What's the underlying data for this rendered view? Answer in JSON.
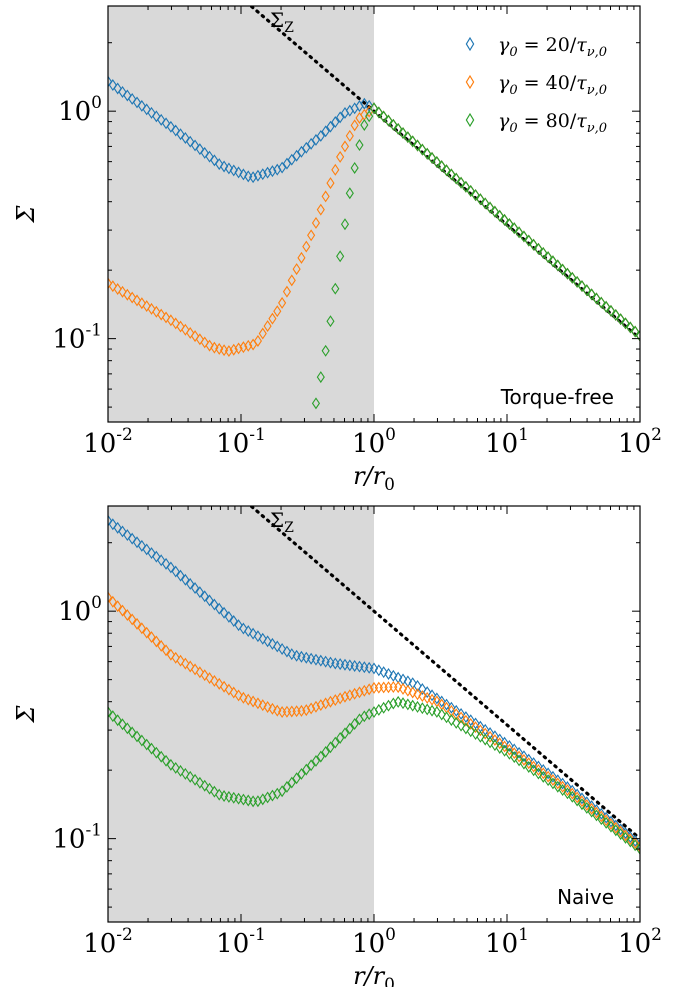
{
  "colors": {
    "blue": "#1f77b4",
    "orange": "#ff7f0e",
    "green": "#2ca02c",
    "shade": "#d9d9d9"
  },
  "chart_data": [
    {
      "type": "scatter",
      "panel_label": "Torque-free",
      "xlabel": "r/r₀",
      "ylabel": "Σ",
      "xscale": "log",
      "yscale": "log",
      "xlim": [
        0.01,
        100
      ],
      "ylim": [
        0.043,
        2.9
      ],
      "x_ticks": [
        "10-2",
        "10-1",
        "100",
        "101",
        "102"
      ],
      "y_ticks": [
        "10-1",
        "100"
      ],
      "shaded_region": [
        0.01,
        1
      ],
      "reference_line": {
        "label": "ΣZ",
        "points": [
          [
            0.01,
            10
          ],
          [
            100,
            0.1
          ]
        ]
      },
      "legend": {
        "position": "top-right"
      },
      "series": [
        {
          "name": "γ0 = 20/τν,0",
          "color_key": "blue",
          "curve": [
            [
              0.01,
              1.35
            ],
            [
              0.03,
              0.85
            ],
            [
              0.07,
              0.58
            ],
            [
              0.12,
              0.51
            ],
            [
              0.2,
              0.56
            ],
            [
              0.4,
              0.78
            ],
            [
              0.6,
              0.98
            ],
            [
              0.85,
              1.08
            ],
            [
              1.0,
              1.03
            ],
            [
              100,
              0.103
            ]
          ]
        },
        {
          "name": "γ0 = 40/τν,0",
          "color_key": "orange",
          "curve": [
            [
              0.01,
              0.175
            ],
            [
              0.03,
              0.12
            ],
            [
              0.06,
              0.092
            ],
            [
              0.08,
              0.088
            ],
            [
              0.13,
              0.095
            ],
            [
              0.2,
              0.14
            ],
            [
              0.35,
              0.3
            ],
            [
              0.55,
              0.62
            ],
            [
              0.75,
              0.92
            ],
            [
              1.0,
              1.03
            ],
            [
              100,
              0.103
            ]
          ]
        },
        {
          "name": "γ0 = 80/τν,0",
          "color_key": "green",
          "curve": [
            [
              0.35,
              0.045
            ],
            [
              0.45,
              0.1
            ],
            [
              0.55,
              0.22
            ],
            [
              0.65,
              0.42
            ],
            [
              0.75,
              0.65
            ],
            [
              0.85,
              0.88
            ],
            [
              1.0,
              1.03
            ],
            [
              100,
              0.103
            ]
          ]
        }
      ]
    },
    {
      "type": "scatter",
      "panel_label": "Naive",
      "xlabel": "r/r₀",
      "ylabel": "Σ",
      "xscale": "log",
      "yscale": "log",
      "xlim": [
        0.01,
        100
      ],
      "ylim": [
        0.043,
        2.9
      ],
      "x_ticks": [
        "10-2",
        "10-1",
        "100",
        "101",
        "102"
      ],
      "y_ticks": [
        "10-1",
        "100"
      ],
      "shaded_region": [
        0.01,
        1
      ],
      "reference_line": {
        "label": "ΣZ",
        "points": [
          [
            0.01,
            10
          ],
          [
            100,
            0.1
          ]
        ]
      },
      "series": [
        {
          "name": "γ0 = 20/τν,0",
          "color_key": "blue",
          "curve": [
            [
              0.01,
              2.5
            ],
            [
              0.03,
              1.55
            ],
            [
              0.1,
              0.85
            ],
            [
              0.25,
              0.64
            ],
            [
              0.5,
              0.59
            ],
            [
              1.0,
              0.56
            ],
            [
              2.0,
              0.48
            ],
            [
              5.0,
              0.34
            ],
            [
              10,
              0.26
            ],
            [
              30,
              0.165
            ],
            [
              100,
              0.094
            ]
          ]
        },
        {
          "name": "γ0 = 40/τν,0",
          "color_key": "orange",
          "curve": [
            [
              0.01,
              1.15
            ],
            [
              0.03,
              0.64
            ],
            [
              0.1,
              0.42
            ],
            [
              0.2,
              0.36
            ],
            [
              0.3,
              0.365
            ],
            [
              0.6,
              0.42
            ],
            [
              1.0,
              0.46
            ],
            [
              1.5,
              0.465
            ],
            [
              3.0,
              0.4
            ],
            [
              10,
              0.25
            ],
            [
              30,
              0.16
            ],
            [
              100,
              0.092
            ]
          ]
        },
        {
          "name": "γ0 = 80/τν,0",
          "color_key": "green",
          "curve": [
            [
              0.01,
              0.36
            ],
            [
              0.03,
              0.21
            ],
            [
              0.07,
              0.155
            ],
            [
              0.13,
              0.145
            ],
            [
              0.2,
              0.16
            ],
            [
              0.4,
              0.23
            ],
            [
              0.8,
              0.34
            ],
            [
              1.5,
              0.4
            ],
            [
              3.0,
              0.36
            ],
            [
              10,
              0.24
            ],
            [
              30,
              0.155
            ],
            [
              100,
              0.09
            ]
          ]
        }
      ]
    }
  ]
}
